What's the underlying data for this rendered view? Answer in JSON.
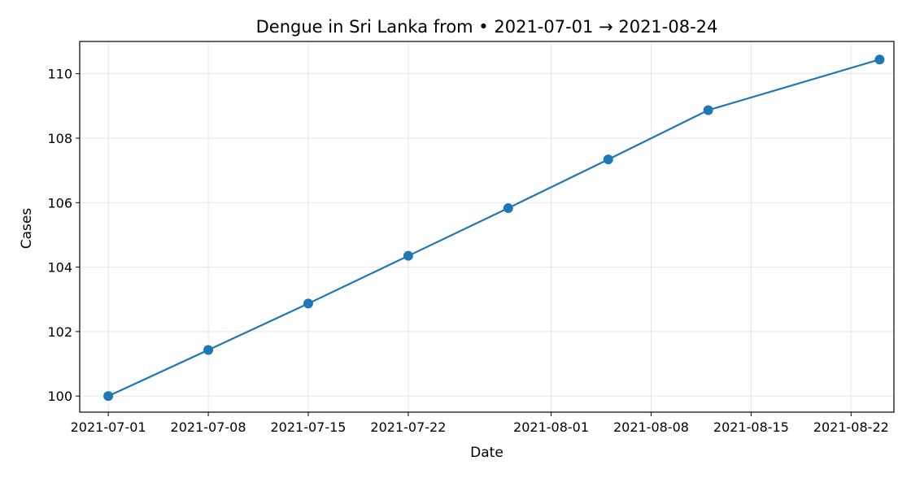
{
  "chart_data": {
    "type": "line",
    "title": "Dengue in Sri Lanka from • 2021-07-01 → 2021-08-24",
    "xlabel": "Date",
    "ylabel": "Cases",
    "x_type": "date",
    "xlim": [
      "2021-06-29",
      "2021-08-25"
    ],
    "ylim": [
      99.5,
      111
    ],
    "x_ticks": [
      "2021-07-01",
      "2021-07-08",
      "2021-07-15",
      "2021-07-22",
      "2021-08-01",
      "2021-08-08",
      "2021-08-15",
      "2021-08-22"
    ],
    "y_ticks": [
      100,
      102,
      104,
      106,
      108,
      110
    ],
    "grid": true,
    "series": [
      {
        "color": "#1f77b4",
        "points": [
          {
            "x": "2021-07-01",
            "y": 100.0
          },
          {
            "x": "2021-07-08",
            "y": 101.43
          },
          {
            "x": "2021-07-15",
            "y": 102.87
          },
          {
            "x": "2021-07-22",
            "y": 104.35
          },
          {
            "x": "2021-07-29",
            "y": 105.83
          },
          {
            "x": "2021-08-05",
            "y": 107.34
          },
          {
            "x": "2021-08-12",
            "y": 108.87
          },
          {
            "x": "2021-08-24",
            "y": 110.44
          }
        ]
      }
    ]
  }
}
